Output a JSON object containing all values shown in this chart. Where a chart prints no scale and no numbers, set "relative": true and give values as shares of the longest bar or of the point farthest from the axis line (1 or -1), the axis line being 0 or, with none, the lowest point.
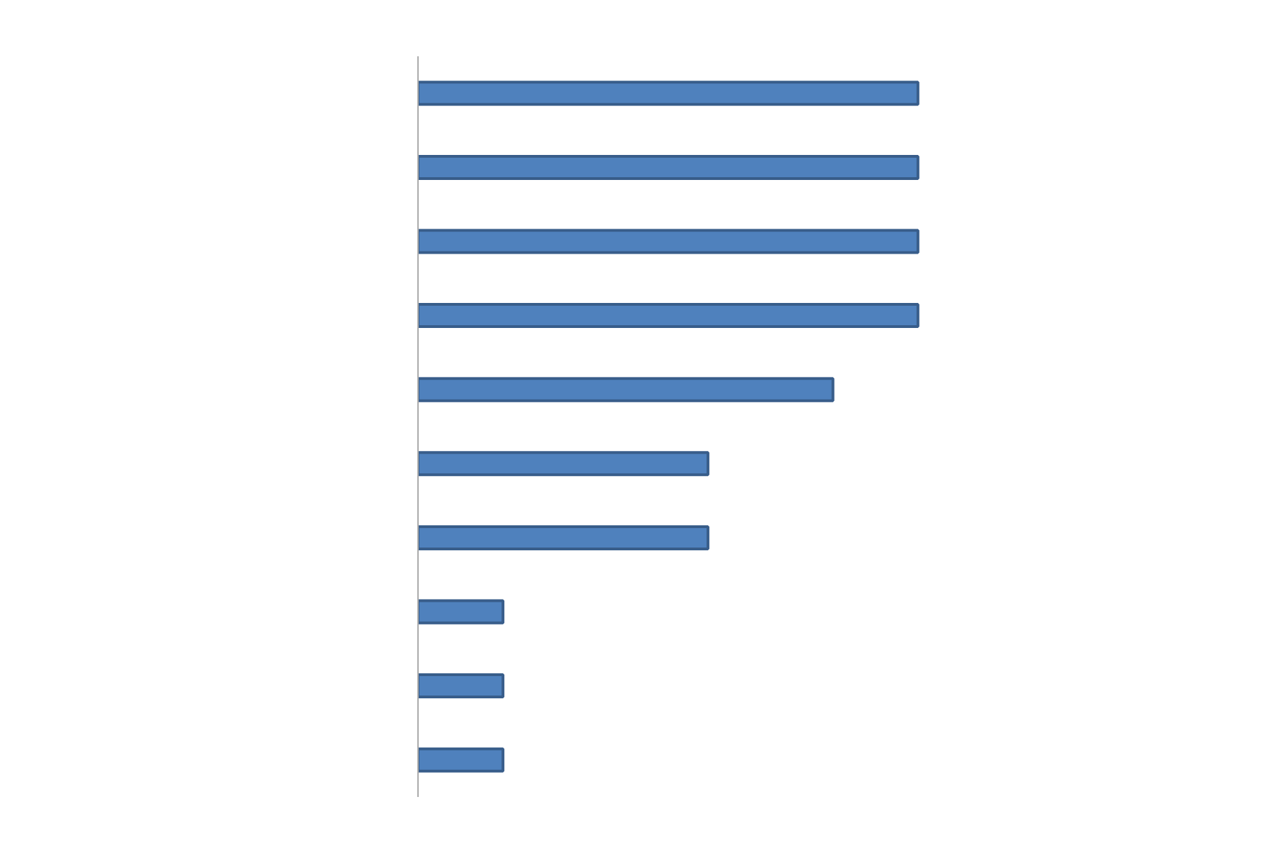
{
  "chart_data": {
    "type": "bar",
    "orientation": "horizontal",
    "relative": true,
    "categories": [
      null,
      null,
      null,
      null,
      null,
      null,
      null,
      null,
      null,
      null
    ],
    "values": [
      1,
      1,
      1,
      1,
      0.83,
      0.58,
      0.58,
      0.17,
      0.17,
      0.17
    ],
    "color": "#4f81bd"
  }
}
